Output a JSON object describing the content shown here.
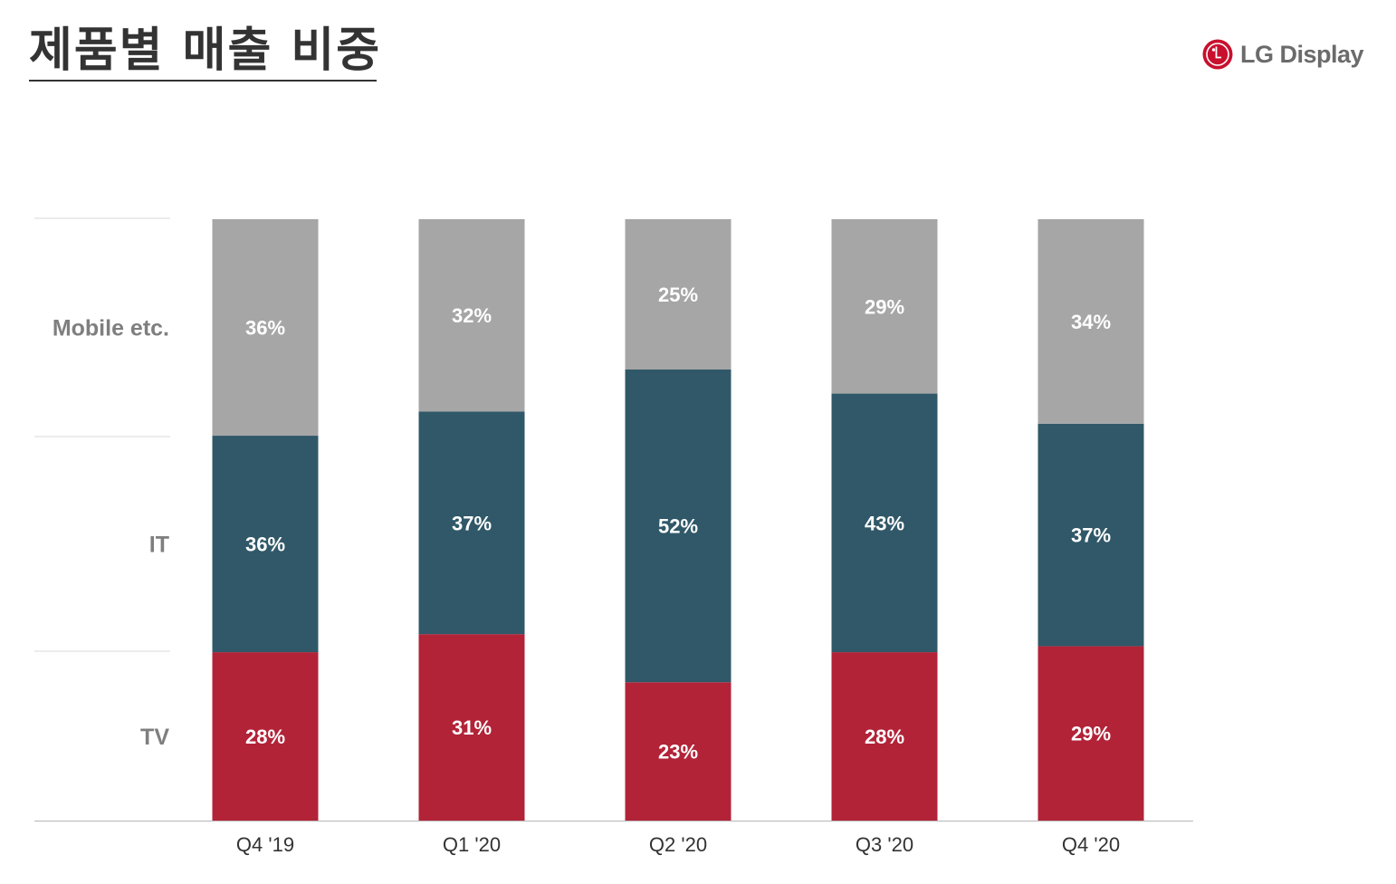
{
  "header": {
    "title": "제품별 매출 비중",
    "logo_text": "LG Display"
  },
  "colors": {
    "tv": "#b22338",
    "it": "#305868",
    "mobile": "#a6a6a6",
    "logo": "#c8102e"
  },
  "icons": {
    "logo": "lg-logo-icon"
  },
  "chart_data": {
    "type": "bar",
    "stacked": true,
    "title": "",
    "xlabel": "",
    "ylabel": "",
    "ylim": [
      0,
      100
    ],
    "grid": false,
    "legend": "left",
    "categories": [
      "Q4 '19",
      "Q1 '20",
      "Q2 '20",
      "Q3 '20",
      "Q4 '20"
    ],
    "series": [
      {
        "name": "TV",
        "values": [
          28,
          31,
          23,
          28,
          29
        ],
        "labels": [
          "28%",
          "31%",
          "23%",
          "28%",
          "29%"
        ]
      },
      {
        "name": "IT",
        "values": [
          36,
          37,
          52,
          43,
          37
        ],
        "labels": [
          "36%",
          "37%",
          "52%",
          "43%",
          "37%"
        ]
      },
      {
        "name": "Mobile etc.",
        "values": [
          36,
          32,
          25,
          29,
          34
        ],
        "labels": [
          "36%",
          "32%",
          "25%",
          "29%",
          "34%"
        ]
      }
    ]
  }
}
